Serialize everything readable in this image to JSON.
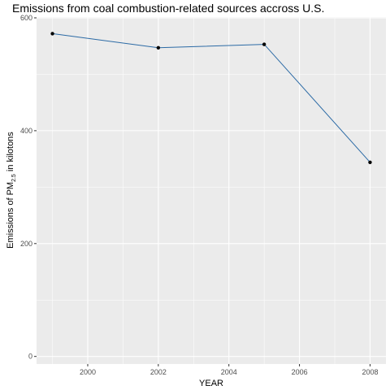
{
  "chart_data": {
    "type": "line",
    "title": "Emissions from coal combustion-related sources accross U.S.",
    "xlabel": "YEAR",
    "ylabel": {
      "prefix": "Emissions of PM",
      "subscript": "2.5",
      "suffix": " in kilotons"
    },
    "x": [
      1999,
      2002,
      2005,
      2008
    ],
    "series": [
      {
        "values": [
          572,
          547,
          553,
          344
        ]
      }
    ],
    "xlim": [
      1998.55,
      2008.45
    ],
    "ylim": [
      -13.4,
      601.4
    ],
    "xticks": [
      2000,
      2002,
      2004,
      2006,
      2008
    ],
    "yticks": [
      0,
      200,
      400,
      600
    ],
    "grid": true,
    "legend": "none",
    "colors": {
      "panel": "#ebebeb",
      "grid_major": "#ffffff",
      "line": "#2b6aa5",
      "point": "#000000",
      "tick": "#333333"
    }
  }
}
